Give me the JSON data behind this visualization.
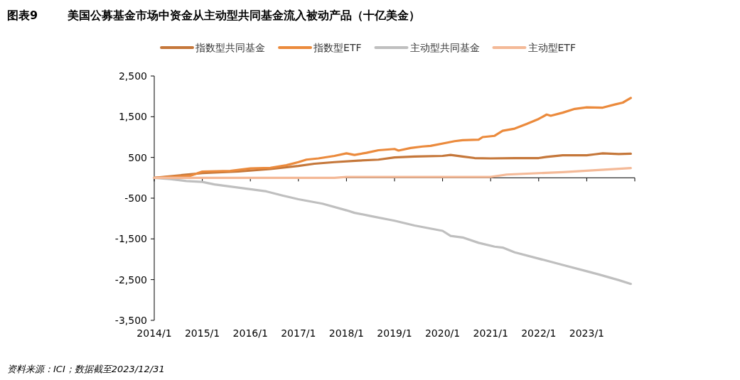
{
  "chart_data": {
    "type": "line",
    "title": "图表9",
    "subtitle": "美国公募基金市场中资金从主动型共同基金流入被动产品（十亿美金）",
    "annotations": [
      "资料来源：ICI；数据截至2023/12/31"
    ],
    "legend": "top",
    "xlim": [
      "2014-01",
      "2024-01"
    ],
    "xticks": [
      {
        "value": "2014-01",
        "label": "2014/1"
      },
      {
        "value": "2015-01",
        "label": "2015/1"
      },
      {
        "value": "2016-01",
        "label": "2016/1"
      },
      {
        "value": "2017-01",
        "label": "2017/1"
      },
      {
        "value": "2018-01",
        "label": "2018/1"
      },
      {
        "value": "2019-01",
        "label": "2019/1"
      },
      {
        "value": "2020-01",
        "label": "2020/1"
      },
      {
        "value": "2021-01",
        "label": "2021/1"
      },
      {
        "value": "2022-01",
        "label": "2022/1"
      },
      {
        "value": "2023-01",
        "label": "2023/1"
      },
      {
        "value": "2024-01",
        "label": null
      }
    ],
    "ylim": [
      -3500,
      2500
    ],
    "yticks": [
      {
        "value": -3500,
        "label": "-3,500"
      },
      {
        "value": -2500,
        "label": "-2,500"
      },
      {
        "value": -1500,
        "label": "-1,500"
      },
      -500,
      500,
      {
        "value": 1500,
        "label": "1,500"
      },
      {
        "value": 2500,
        "label": "2,500"
      }
    ],
    "series": [
      {
        "name": "指数型共同基金",
        "color": "#c5773a",
        "x": [
          "2014-01",
          "2015-01",
          "2015-10",
          "2016-06",
          "2017-01",
          "2017-05",
          "2017-10",
          "2018-04",
          "2018-09",
          "2019-01",
          "2019-06",
          "2020-01",
          "2020-03",
          "2020-06",
          "2020-09",
          "2021-01",
          "2021-07",
          "2022-01",
          "2022-03",
          "2022-07",
          "2023-01",
          "2023-03",
          "2023-05",
          "2023-09",
          "2023-12"
        ],
        "values": [
          0,
          115,
          154,
          215,
          292,
          346,
          385,
          423,
          446,
          500,
          523,
          538,
          561,
          523,
          485,
          477,
          485,
          485,
          515,
          554,
          554,
          577,
          600,
          584,
          592
        ]
      },
      {
        "name": "指数型ETF",
        "color": "#eb8a3c",
        "x": [
          "2014-01",
          "2014-10",
          "2015-01",
          "2015-08",
          "2016-01",
          "2016-06",
          "2016-10",
          "2017-01",
          "2017-03",
          "2017-06",
          "2017-10",
          "2018-01",
          "2018-03",
          "2018-06",
          "2018-09",
          "2019-01",
          "2019-02",
          "2019-05",
          "2019-08",
          "2019-10",
          "2020-02",
          "2020-04",
          "2020-06",
          "2020-10",
          "2020-11",
          "2021-02",
          "2021-04",
          "2021-07",
          "2021-10",
          "2022-01",
          "2022-03",
          "2022-04",
          "2022-07",
          "2022-10",
          "2023-01",
          "2023-05",
          "2023-08",
          "2023-10",
          "2023-12"
        ],
        "values": [
          0,
          50,
          154,
          170,
          231,
          246,
          308,
          385,
          446,
          477,
          538,
          600,
          561,
          615,
          677,
          708,
          669,
          731,
          769,
          785,
          861,
          900,
          923,
          938,
          1000,
          1031,
          1154,
          1208,
          1323,
          1446,
          1554,
          1523,
          1600,
          1692,
          1731,
          1723,
          1800,
          1846,
          1961
        ]
      },
      {
        "name": "主动型共同基金",
        "color": "#bfbfbf",
        "x": [
          "2014-01",
          "2014-05",
          "2014-09",
          "2015-01",
          "2015-04",
          "2015-10",
          "2016-05",
          "2016-09",
          "2017-01",
          "2017-07",
          "2018-01",
          "2018-03",
          "2018-07",
          "2019-01",
          "2019-06",
          "2020-01",
          "2020-03",
          "2020-06",
          "2020-10",
          "2021-02",
          "2021-04",
          "2021-07",
          "2022-01",
          "2022-07",
          "2023-01",
          "2023-04",
          "2023-09",
          "2023-12"
        ],
        "values": [
          0,
          -31,
          -78,
          -101,
          -163,
          -240,
          -333,
          -434,
          -527,
          -636,
          -798,
          -860,
          -938,
          -1054,
          -1171,
          -1302,
          -1426,
          -1465,
          -1597,
          -1690,
          -1713,
          -1829,
          -1984,
          -2140,
          -2295,
          -2372,
          -2512,
          -2605
        ]
      },
      {
        "name": "主动型ETF",
        "color": "#f4b997",
        "x": [
          "2014-01",
          "2017-10",
          "2018-01",
          "2021-01",
          "2021-05",
          "2022-07",
          "2023-12"
        ],
        "values": [
          0,
          0,
          20,
          20,
          80,
          140,
          240
        ]
      }
    ]
  }
}
